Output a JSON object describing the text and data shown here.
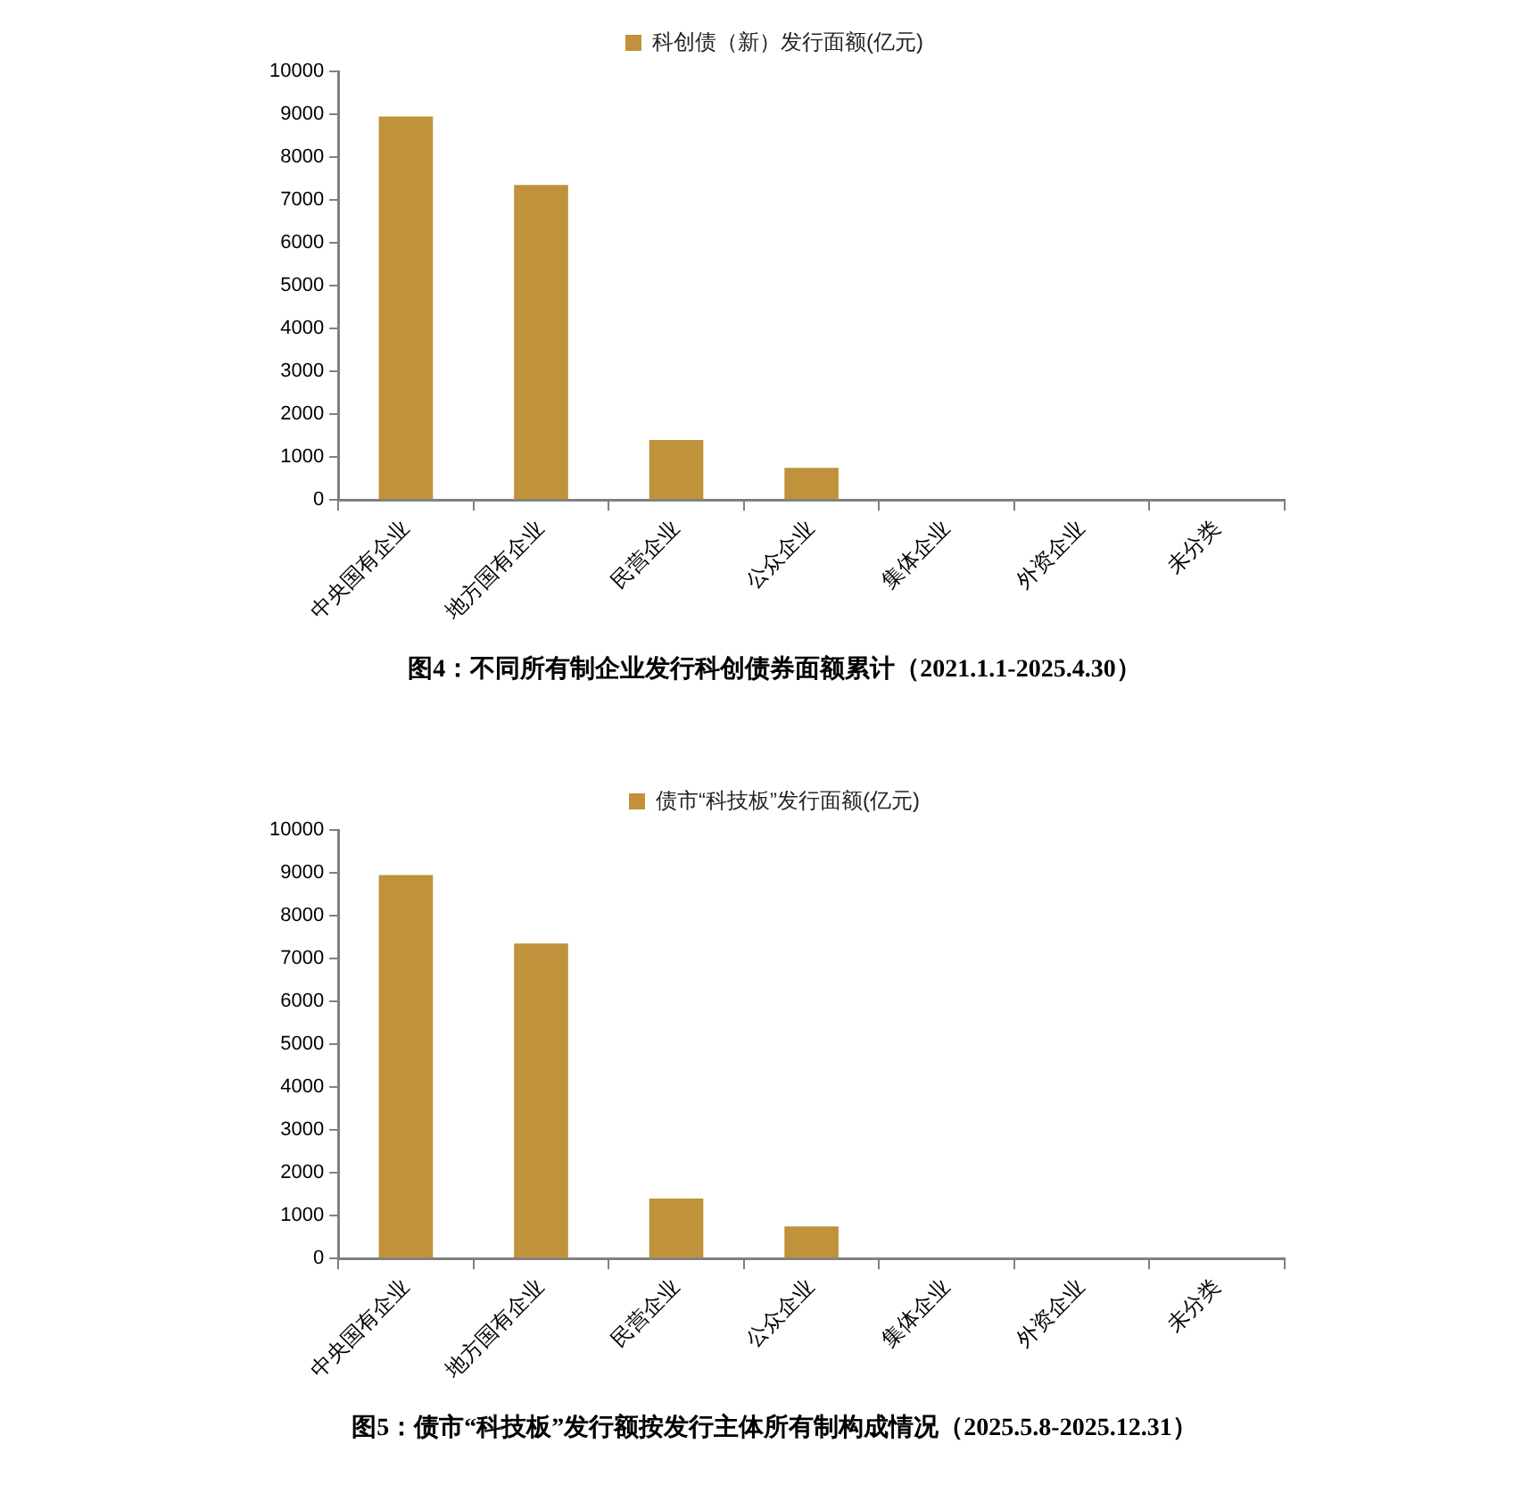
{
  "chart_data": [
    {
      "type": "bar",
      "title": "图4：不同所有制企业发行科创债券面额累计（2021.1.1-2025.4.30）",
      "categories": [
        "中央国有企业",
        "地方国有企业",
        "民营企业",
        "公众企业",
        "集体企业",
        "外资企业",
        "未分类"
      ],
      "series": [
        {
          "name": "科创债（新）发行面额(亿元)",
          "color": "#bf923b",
          "values": [
            8950,
            7350,
            1400,
            750,
            0,
            0,
            0
          ]
        }
      ],
      "ylim": [
        0,
        10000
      ],
      "yticks": [
        0,
        1000,
        2000,
        3000,
        4000,
        5000,
        6000,
        7000,
        8000,
        9000,
        10000
      ],
      "grid": false,
      "legend": "top"
    },
    {
      "type": "bar",
      "title": "图5：债市“科技板”发行额按发行主体所有制构成情况（2025.5.8-2025.12.31）",
      "categories": [
        "中央国有企业",
        "地方国有企业",
        "民营企业",
        "公众企业",
        "集体企业",
        "外资企业",
        "未分类"
      ],
      "series": [
        {
          "name": "债市“科技板”发行面额(亿元)",
          "color": "#bf923b",
          "values": [
            8950,
            7350,
            1400,
            750,
            0,
            0,
            0
          ]
        }
      ],
      "ylim": [
        0,
        10000
      ],
      "yticks": [
        0,
        1000,
        2000,
        3000,
        4000,
        5000,
        6000,
        7000,
        8000,
        9000,
        10000
      ],
      "grid": false,
      "legend": "top"
    }
  ]
}
